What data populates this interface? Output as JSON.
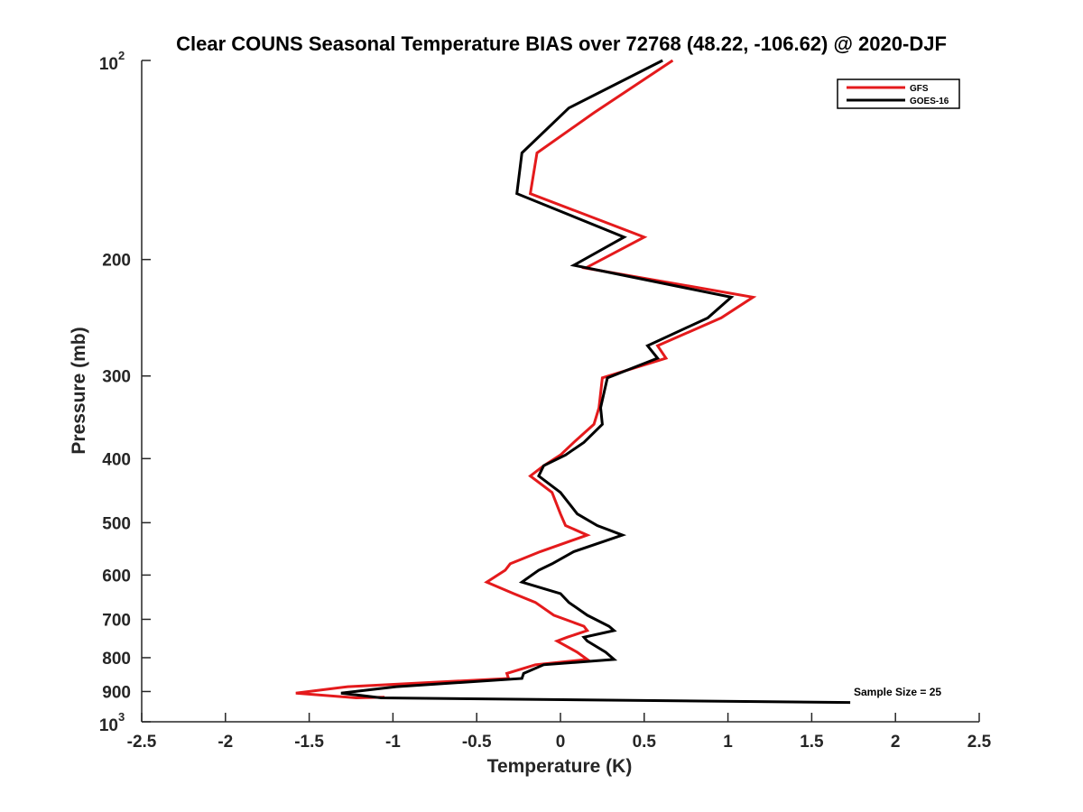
{
  "chart_data": {
    "type": "line",
    "title": "Clear COUNS Seasonal Temperature BIAS over 72768 (48.22, -106.62) @ 2020-DJF",
    "xlabel": "Temperature (K)",
    "ylabel": "Pressure (mb)",
    "xlim": [
      -2.5,
      2.5
    ],
    "ylim": [
      100,
      1000
    ],
    "y_scale": "log",
    "y_reversed": true,
    "x_ticks": [
      -2.5,
      -2,
      -1.5,
      -1,
      -0.5,
      0,
      0.5,
      1,
      1.5,
      2,
      2.5
    ],
    "x_tick_labels": [
      "-2.5",
      "-2",
      "-1.5",
      "-1",
      "-0.5",
      "0",
      "0.5",
      "1",
      "1.5",
      "2",
      "2.5"
    ],
    "y_ticks": [
      {
        "value": 100,
        "base": "10",
        "exp": "2"
      },
      {
        "value": 200,
        "label": "200"
      },
      {
        "value": 300,
        "label": "300"
      },
      {
        "value": 400,
        "label": "400"
      },
      {
        "value": 500,
        "label": "500"
      },
      {
        "value": 600,
        "label": "600"
      },
      {
        "value": 700,
        "label": "700"
      },
      {
        "value": 800,
        "label": "800"
      },
      {
        "value": 900,
        "label": "900"
      },
      {
        "value": 1000,
        "base": "10",
        "exp": "3"
      }
    ],
    "grid": false,
    "legend_position": "top-right",
    "annotation": "Sample Size = 25",
    "series": [
      {
        "name": "GFS",
        "color": "#e41a1c",
        "points": [
          [
            0.67,
            100
          ],
          [
            0.2,
            120
          ],
          [
            -0.14,
            138
          ],
          [
            -0.18,
            159
          ],
          [
            0.5,
            185
          ],
          [
            0.15,
            206
          ],
          [
            1.15,
            228
          ],
          [
            0.96,
            245
          ],
          [
            0.58,
            270
          ],
          [
            0.63,
            282
          ],
          [
            0.25,
            302
          ],
          [
            0.23,
            335
          ],
          [
            0.2,
            355
          ],
          [
            0.08,
            378
          ],
          [
            0.0,
            395
          ],
          [
            -0.1,
            410
          ],
          [
            -0.18,
            425
          ],
          [
            -0.05,
            450
          ],
          [
            0.0,
            485
          ],
          [
            0.03,
            505
          ],
          [
            0.16,
            522
          ],
          [
            -0.12,
            553
          ],
          [
            -0.3,
            577
          ],
          [
            -0.33,
            590
          ],
          [
            -0.44,
            615
          ],
          [
            -0.28,
            640
          ],
          [
            -0.15,
            660
          ],
          [
            -0.04,
            690
          ],
          [
            0.14,
            717
          ],
          [
            0.16,
            728
          ],
          [
            0.04,
            745
          ],
          [
            -0.02,
            755
          ],
          [
            0.1,
            785
          ],
          [
            0.16,
            805
          ],
          [
            -0.15,
            820
          ],
          [
            -0.32,
            845
          ],
          [
            -0.31,
            860
          ],
          [
            -1.27,
            885
          ],
          [
            -1.58,
            905
          ],
          [
            -1.22,
            920
          ],
          [
            -1.05,
            918
          ]
        ]
      },
      {
        "name": "GOES-16",
        "color": "#000000",
        "points": [
          [
            0.61,
            100
          ],
          [
            0.05,
            118
          ],
          [
            -0.23,
            138
          ],
          [
            -0.26,
            159
          ],
          [
            0.38,
            185
          ],
          [
            0.08,
            204
          ],
          [
            1.02,
            228
          ],
          [
            0.88,
            245
          ],
          [
            0.52,
            270
          ],
          [
            0.58,
            282
          ],
          [
            0.28,
            302
          ],
          [
            0.24,
            335
          ],
          [
            0.25,
            355
          ],
          [
            0.14,
            378
          ],
          [
            0.03,
            395
          ],
          [
            -0.1,
            410
          ],
          [
            -0.13,
            425
          ],
          [
            0.0,
            450
          ],
          [
            0.1,
            485
          ],
          [
            0.22,
            505
          ],
          [
            0.37,
            522
          ],
          [
            0.08,
            553
          ],
          [
            -0.05,
            577
          ],
          [
            -0.13,
            590
          ],
          [
            -0.23,
            615
          ],
          [
            0.0,
            640
          ],
          [
            0.05,
            660
          ],
          [
            0.16,
            690
          ],
          [
            0.29,
            717
          ],
          [
            0.32,
            728
          ],
          [
            0.14,
            745
          ],
          [
            0.16,
            755
          ],
          [
            0.27,
            785
          ],
          [
            0.32,
            805
          ],
          [
            -0.1,
            820
          ],
          [
            -0.22,
            845
          ],
          [
            -0.23,
            860
          ],
          [
            -0.98,
            885
          ],
          [
            -1.31,
            905
          ],
          [
            -1.07,
            920
          ],
          [
            1.73,
            935
          ]
        ]
      }
    ]
  }
}
